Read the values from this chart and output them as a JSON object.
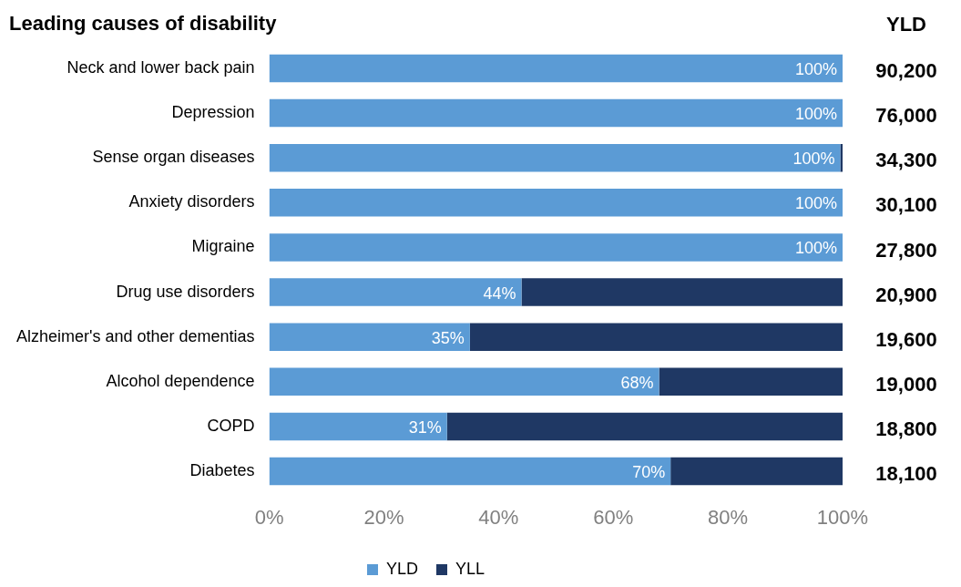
{
  "chart_data": {
    "type": "bar",
    "orientation": "horizontal",
    "stacked": true,
    "title": "Leading causes of disability",
    "categories": [
      "Neck and lower back pain",
      "Depression",
      "Sense organ diseases",
      "Anxiety disorders",
      "Migraine",
      "Drug use disorders",
      "Alzheimer's and other dementias",
      "Alcohol dependence",
      "COPD",
      "Diabetes"
    ],
    "series": [
      {
        "name": "YLD",
        "color": "#5b9bd5",
        "values": [
          100,
          100,
          99.6,
          100,
          100,
          44,
          35,
          68,
          31,
          70
        ],
        "value_labels": [
          "100%",
          "100%",
          "100%",
          "100%",
          "100%",
          "44%",
          "35%",
          "68%",
          "31%",
          "70%"
        ]
      },
      {
        "name": "YLL",
        "color": "#1f3864",
        "values": [
          0,
          0,
          0.4,
          0,
          0,
          56,
          65,
          32,
          69,
          30
        ]
      }
    ],
    "xlim": [
      0,
      100
    ],
    "xticks": [
      {
        "value": 0,
        "label": "0%"
      },
      {
        "value": 20,
        "label": "20%"
      },
      {
        "value": 40,
        "label": "40%"
      },
      {
        "value": 60,
        "label": "60%"
      },
      {
        "value": 80,
        "label": "80%"
      },
      {
        "value": 100,
        "label": "100%"
      }
    ],
    "annotations": [
      "YLD",
      "90,200",
      "76,000",
      "34,300",
      "30,100",
      "27,800",
      "20,900",
      "19,600",
      "19,000",
      "18,800",
      "18,100"
    ],
    "legend": "bottom",
    "grid": false
  }
}
